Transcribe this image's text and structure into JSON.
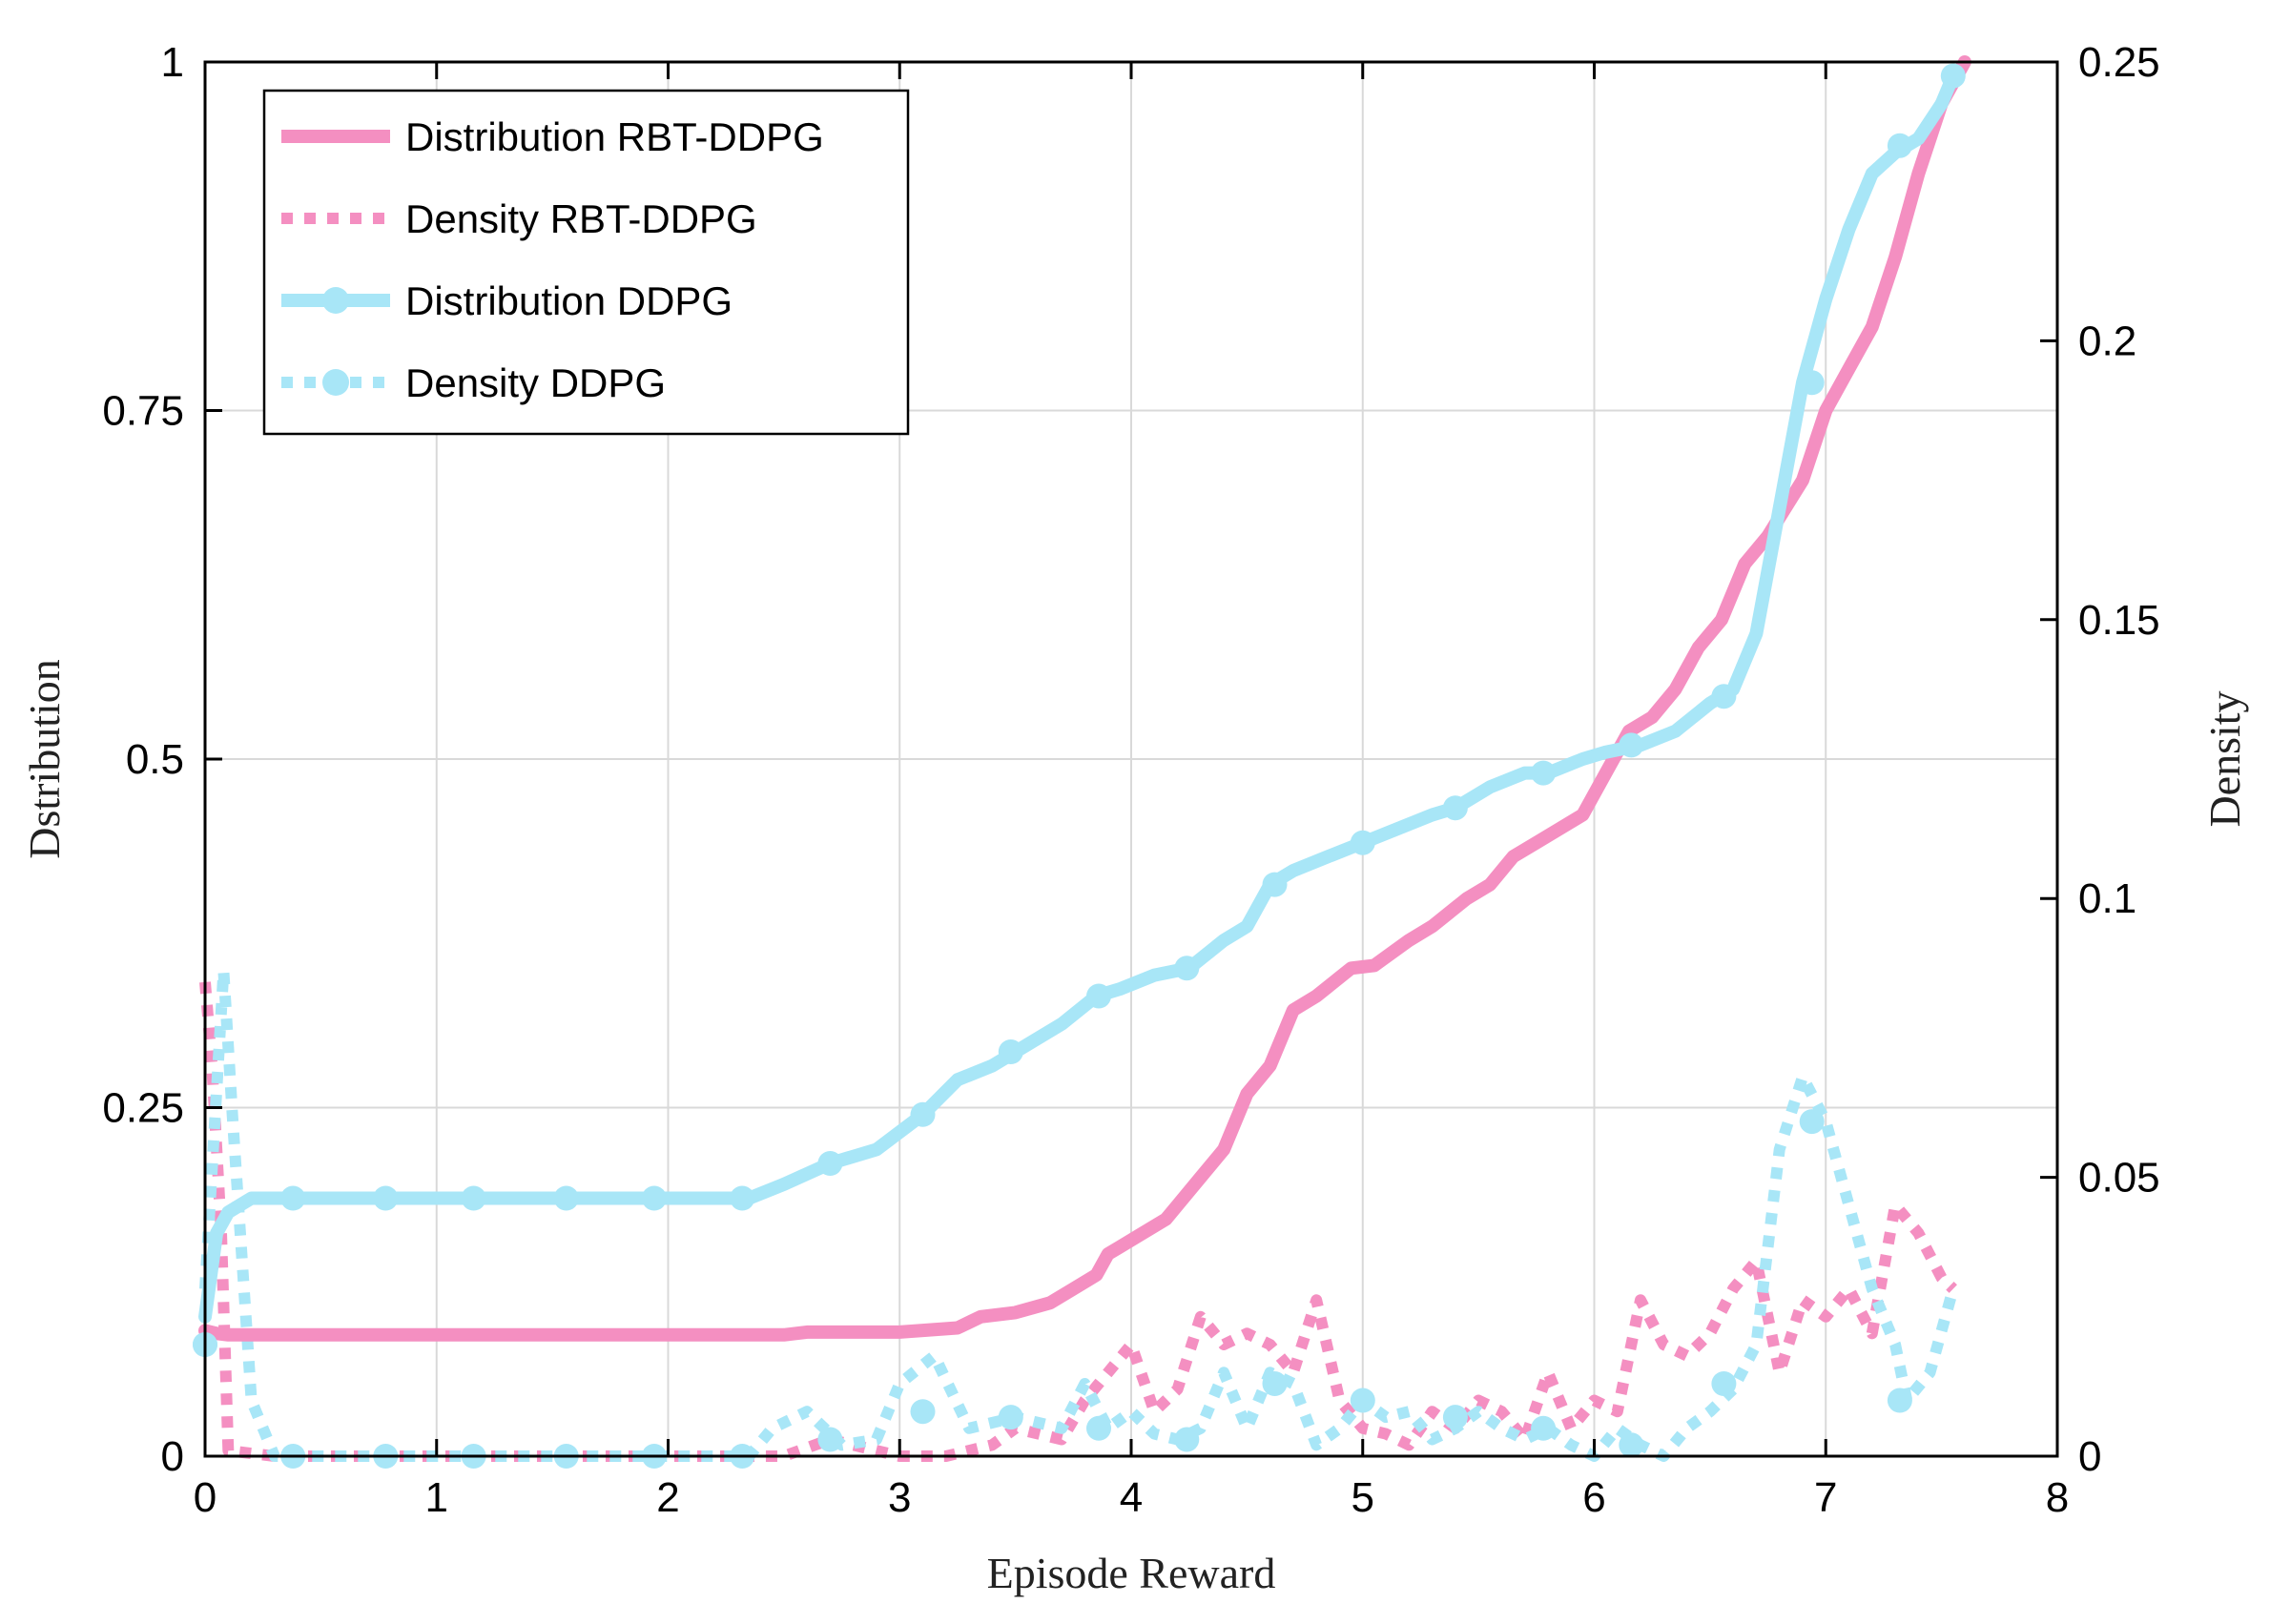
{
  "chart_data": {
    "type": "line",
    "title": "",
    "xlabel": "Episode Reward",
    "ylabel_left": "Dstribution",
    "ylabel_right": "Density",
    "xlim": [
      0,
      8
    ],
    "ylim_left": [
      0,
      1
    ],
    "ylim_right": [
      0,
      0.25
    ],
    "x_ticks": [
      "0",
      "1",
      "2",
      "3",
      "4",
      "5",
      "6",
      "7",
      "8"
    ],
    "y_left_ticks": [
      "0",
      "0.25",
      "0.5",
      "0.75",
      "1"
    ],
    "y_right_ticks": [
      "0",
      "0.05",
      "0.1",
      "0.15",
      "0.2",
      "0.25"
    ],
    "grid": true,
    "legend_position": "top-left",
    "colors": {
      "pink": "#f48fc1",
      "cyan": "#a8e6f7",
      "grid": "#d9d9d9",
      "axis": "#000000"
    },
    "series": [
      {
        "name": "Distribution RBT-DDPG",
        "axis": "left",
        "style": "solid",
        "color": "#f48fc1",
        "x": [
          0,
          0.05,
          0.1,
          1,
          2,
          2.5,
          2.6,
          3.0,
          3.25,
          3.35,
          3.5,
          3.65,
          3.75,
          3.85,
          3.9,
          3.95,
          4.05,
          4.15,
          4.2,
          4.3,
          4.4,
          4.5,
          4.6,
          4.7,
          4.8,
          4.95,
          5.05,
          5.2,
          5.3,
          5.45,
          5.55,
          5.65,
          5.75,
          5.85,
          5.95,
          6.05,
          6.15,
          6.25,
          6.35,
          6.45,
          6.55,
          6.65,
          6.75,
          6.9,
          7.0,
          7.1,
          7.2,
          7.3,
          7.4,
          7.5,
          7.6
        ],
        "y": [
          0.09,
          0.088,
          0.087,
          0.087,
          0.087,
          0.087,
          0.089,
          0.089,
          0.092,
          0.1,
          0.103,
          0.11,
          0.12,
          0.13,
          0.145,
          0.15,
          0.16,
          0.17,
          0.18,
          0.2,
          0.22,
          0.26,
          0.28,
          0.32,
          0.33,
          0.35,
          0.352,
          0.37,
          0.38,
          0.4,
          0.41,
          0.43,
          0.44,
          0.45,
          0.46,
          0.49,
          0.52,
          0.53,
          0.55,
          0.58,
          0.6,
          0.64,
          0.66,
          0.7,
          0.75,
          0.78,
          0.81,
          0.86,
          0.92,
          0.97,
          1.0
        ]
      },
      {
        "name": "Density RBT-DDPG",
        "axis": "right",
        "style": "dotted",
        "color": "#f48fc1",
        "x": [
          0,
          0.03,
          0.07,
          0.1,
          0.3,
          1,
          2,
          2.5,
          2.7,
          3.0,
          3.2,
          3.4,
          3.5,
          3.7,
          3.8,
          3.9,
          4.0,
          4.1,
          4.2,
          4.3,
          4.4,
          4.5,
          4.6,
          4.7,
          4.8,
          4.9,
          5.0,
          5.1,
          5.2,
          5.3,
          5.4,
          5.5,
          5.6,
          5.7,
          5.8,
          5.9,
          6.0,
          6.1,
          6.2,
          6.3,
          6.4,
          6.5,
          6.6,
          6.7,
          6.8,
          6.9,
          7.0,
          7.1,
          7.2,
          7.3,
          7.4,
          7.5,
          7.55
        ],
        "y": [
          0.085,
          0.07,
          0.04,
          0.001,
          0.0,
          0.0,
          0.0,
          0.0,
          0.003,
          0.0,
          0.0,
          0.002,
          0.005,
          0.003,
          0.01,
          0.015,
          0.02,
          0.008,
          0.012,
          0.025,
          0.02,
          0.022,
          0.02,
          0.015,
          0.028,
          0.01,
          0.005,
          0.004,
          0.002,
          0.008,
          0.005,
          0.01,
          0.008,
          0.003,
          0.015,
          0.005,
          0.01,
          0.008,
          0.028,
          0.02,
          0.018,
          0.022,
          0.03,
          0.035,
          0.015,
          0.028,
          0.025,
          0.03,
          0.022,
          0.045,
          0.04,
          0.032,
          0.03
        ]
      },
      {
        "name": "Distribution DDPG",
        "axis": "left",
        "style": "solid-marker",
        "color": "#a8e6f7",
        "x": [
          0,
          0.05,
          0.1,
          0.2,
          0.4,
          0.8,
          1.2,
          1.6,
          2.0,
          2.35,
          2.5,
          2.7,
          2.9,
          3.1,
          3.25,
          3.4,
          3.5,
          3.7,
          3.85,
          3.95,
          4.1,
          4.25,
          4.4,
          4.5,
          4.6,
          4.7,
          4.85,
          5.0,
          5.15,
          5.3,
          5.4,
          5.55,
          5.7,
          5.8,
          5.95,
          6.05,
          6.2,
          6.35,
          6.5,
          6.6,
          6.7,
          6.8,
          6.9,
          7.0,
          7.1,
          7.2,
          7.3,
          7.4,
          7.5,
          7.55
        ],
        "y": [
          0.1,
          0.16,
          0.175,
          0.185,
          0.185,
          0.185,
          0.185,
          0.185,
          0.185,
          0.185,
          0.195,
          0.21,
          0.22,
          0.245,
          0.27,
          0.28,
          0.29,
          0.31,
          0.33,
          0.335,
          0.345,
          0.35,
          0.37,
          0.38,
          0.41,
          0.42,
          0.43,
          0.44,
          0.45,
          0.46,
          0.465,
          0.48,
          0.49,
          0.49,
          0.5,
          0.505,
          0.51,
          0.52,
          0.54,
          0.55,
          0.59,
          0.68,
          0.77,
          0.83,
          0.88,
          0.92,
          0.935,
          0.945,
          0.97,
          0.99
        ],
        "markers_x": [
          0.0,
          0.38,
          0.78,
          1.16,
          1.56,
          1.94,
          2.32,
          2.7,
          3.1,
          3.48,
          3.86,
          4.24,
          4.62,
          5.0,
          5.4,
          5.78,
          6.16,
          6.56,
          6.94,
          7.32,
          7.55
        ],
        "markers_y": [
          0.08,
          0.185,
          0.185,
          0.185,
          0.185,
          0.185,
          0.185,
          0.21,
          0.245,
          0.29,
          0.33,
          0.35,
          0.41,
          0.44,
          0.465,
          0.49,
          0.51,
          0.545,
          0.77,
          0.94,
          0.99
        ]
      },
      {
        "name": "Density DDPG",
        "axis": "right",
        "style": "dotted-marker",
        "color": "#a8e6f7",
        "x": [
          0,
          0.08,
          0.12,
          0.2,
          0.3,
          1,
          2,
          2.35,
          2.45,
          2.6,
          2.75,
          2.9,
          3.0,
          3.15,
          3.3,
          3.5,
          3.7,
          3.8,
          3.9,
          4.0,
          4.1,
          4.2,
          4.3,
          4.4,
          4.5,
          4.6,
          4.7,
          4.8,
          4.9,
          5.0,
          5.1,
          5.2,
          5.3,
          5.4,
          5.5,
          5.6,
          5.7,
          5.8,
          5.9,
          6.0,
          6.1,
          6.2,
          6.3,
          6.4,
          6.5,
          6.6,
          6.7,
          6.8,
          6.9,
          7.0,
          7.1,
          7.2,
          7.3,
          7.35,
          7.45,
          7.55
        ],
        "y": [
          0.03,
          0.087,
          0.06,
          0.01,
          0.0,
          0.0,
          0.0,
          0.0,
          0.005,
          0.008,
          0.002,
          0.003,
          0.013,
          0.018,
          0.005,
          0.007,
          0.005,
          0.013,
          0.005,
          0.008,
          0.004,
          0.003,
          0.005,
          0.015,
          0.005,
          0.015,
          0.013,
          0.002,
          0.005,
          0.01,
          0.007,
          0.008,
          0.003,
          0.005,
          0.008,
          0.005,
          0.003,
          0.005,
          0.002,
          0.0,
          0.005,
          0.002,
          0.0,
          0.005,
          0.008,
          0.012,
          0.02,
          0.055,
          0.068,
          0.06,
          0.045,
          0.03,
          0.02,
          0.01,
          0.015,
          0.03
        ],
        "markers_x": [
          0.0,
          0.38,
          0.78,
          1.16,
          1.56,
          1.94,
          2.32,
          2.7,
          3.1,
          3.48,
          3.86,
          4.24,
          4.62,
          5.0,
          5.4,
          5.78,
          6.16,
          6.56,
          6.94,
          7.32
        ],
        "markers_y": [
          0.02,
          0.0,
          0.0,
          0.0,
          0.0,
          0.0,
          0.0,
          0.003,
          0.008,
          0.007,
          0.005,
          0.003,
          0.013,
          0.01,
          0.007,
          0.005,
          0.002,
          0.013,
          0.06,
          0.01
        ]
      }
    ]
  }
}
